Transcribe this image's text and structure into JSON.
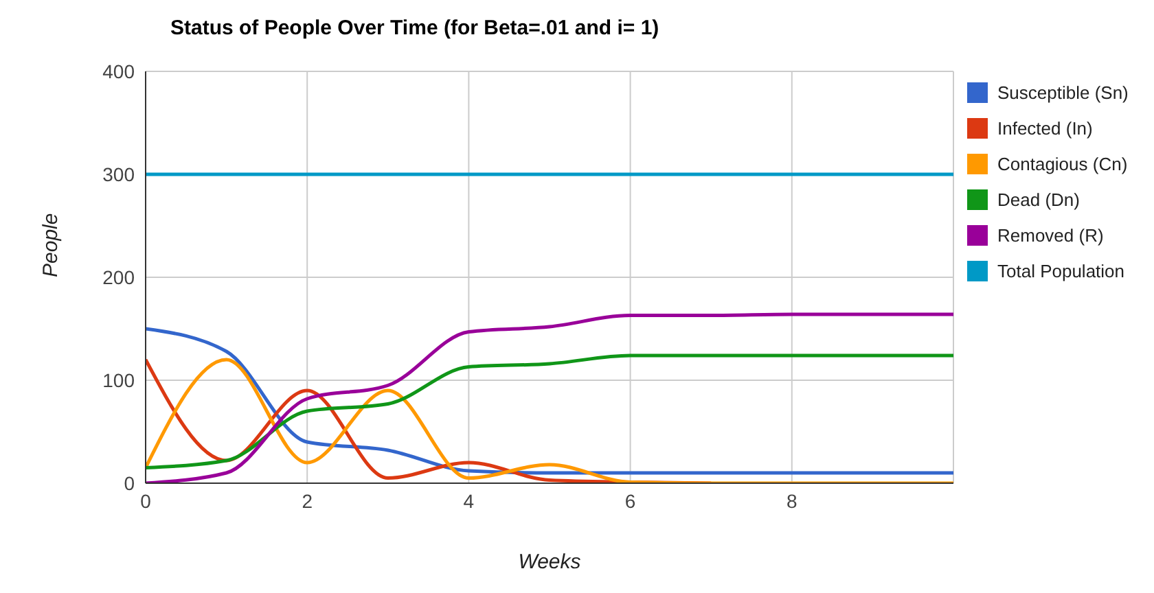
{
  "chart_data": {
    "type": "line",
    "title": "Status of People Over Time (for Beta=.01 and i= 1)",
    "xlabel": "Weeks",
    "ylabel": "People",
    "x": [
      0,
      1,
      2,
      3,
      4,
      5,
      6,
      7,
      8,
      9,
      10
    ],
    "series": [
      {
        "name": "Susceptible (Sn)",
        "color": "#3366cc",
        "values": [
          150,
          128,
          40,
          32,
          12,
          10,
          10,
          10,
          10,
          10,
          10
        ]
      },
      {
        "name": "Infected (In)",
        "color": "#dc3912",
        "values": [
          120,
          22,
          90,
          5,
          20,
          3,
          1,
          0,
          null,
          null,
          null
        ]
      },
      {
        "name": "Contagious (Cn)",
        "color": "#ff9900",
        "values": [
          15,
          120,
          20,
          90,
          5,
          18,
          1,
          0,
          0,
          0,
          0
        ]
      },
      {
        "name": "Dead (Dn)",
        "color": "#109618",
        "values": [
          15,
          22,
          70,
          77,
          113,
          116,
          124,
          124,
          124,
          124,
          124
        ]
      },
      {
        "name": "Removed (R)",
        "color": "#990099",
        "values": [
          0,
          10,
          82,
          95,
          147,
          152,
          163,
          163,
          164,
          164,
          164
        ]
      },
      {
        "name": "Total Population",
        "color": "#0099c6",
        "values": [
          300,
          300,
          300,
          300,
          300,
          300,
          300,
          300,
          300,
          300,
          300
        ]
      }
    ],
    "xlim": [
      0,
      10
    ],
    "xticks": [
      0,
      2,
      4,
      6,
      8
    ],
    "ylim": [
      0,
      400
    ],
    "yticks": [
      0,
      100,
      200,
      300,
      400
    ],
    "grid": true,
    "legend": "right",
    "marker": "none",
    "line_style": "solid"
  }
}
